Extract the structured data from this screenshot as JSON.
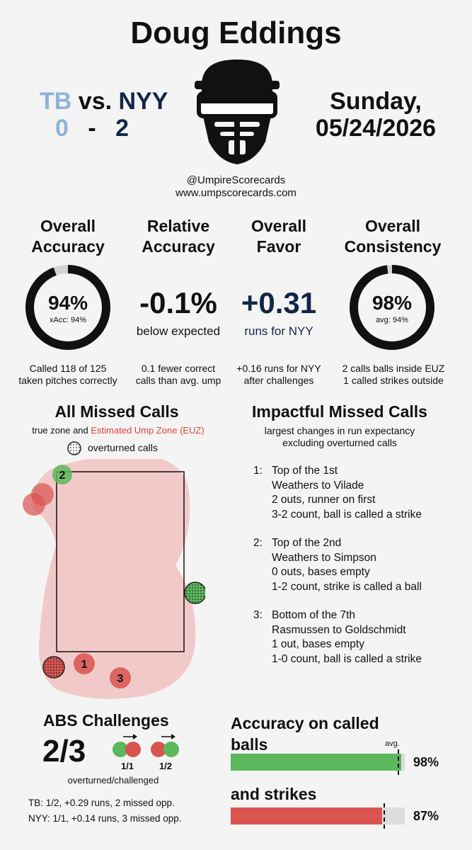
{
  "header": {
    "umpire_name": "Doug Eddings",
    "away_team": "TB",
    "home_team": "NYY",
    "vs_label": "vs.",
    "away_score": "0",
    "score_sep": "-",
    "home_score": "2",
    "day": "Sunday,",
    "date": "05/24/2026",
    "handle": "@UmpireScorecards",
    "website": "www.umpscorecards.com",
    "logo_icon": "umpire-mask-icon"
  },
  "metrics": {
    "overall_accuracy": {
      "title_line1": "Overall",
      "title_line2": "Accuracy",
      "value": "94%",
      "sub": "xAcc: 94%",
      "fraction": 0.944,
      "desc_line1": "Called 118 of 125",
      "desc_line2": "taken pitches correctly"
    },
    "relative_accuracy": {
      "title_line1": "Relative",
      "title_line2": "Accuracy",
      "value": "-0.1%",
      "sub": "below expected",
      "desc_line1": "0.1 fewer correct",
      "desc_line2": "calls than avg. ump"
    },
    "overall_favor": {
      "title_line1": "Overall",
      "title_line2": "Favor",
      "value": "+0.31",
      "sub": "runs for NYY",
      "desc_line1": "+0.16 runs for NYY",
      "desc_line2": "after challenges"
    },
    "overall_consistency": {
      "title_line1": "Overall",
      "title_line2": "Consistency",
      "value": "98%",
      "sub": "avg: 94%",
      "fraction": 0.98,
      "desc_line1": "2 calls balls inside EUZ",
      "desc_line2": "1 called strikes outside"
    }
  },
  "missed_calls": {
    "title": "All Missed Calls",
    "subtitle_prefix": "true zone and ",
    "subtitle_highlight": "Estimated Ump Zone (EUZ)",
    "legend_label": "overturned calls",
    "labels": [
      "1",
      "2",
      "3"
    ]
  },
  "impactful": {
    "title": "Impactful Missed Calls",
    "subtitle_line1": "largest changes in run expectancy",
    "subtitle_line2": "excluding overturned calls",
    "items": [
      {
        "num": "1:",
        "inning": "Top of the 1st",
        "matchup": "Weathers to Vilade",
        "situation": "2 outs, runner on first",
        "result": "3-2 count, ball is called a strike"
      },
      {
        "num": "2:",
        "inning": "Top of the 2nd",
        "matchup": "Weathers to Simpson",
        "situation": "0 outs, bases empty",
        "result": "1-2 count, strike is called a ball"
      },
      {
        "num": "3:",
        "inning": "Bottom of the 7th",
        "matchup": "Rasmussen to Goldschmidt",
        "situation": "1 out, bases empty",
        "result": "1-0 count, ball is called a strike"
      }
    ]
  },
  "abs": {
    "title": "ABS Challenges",
    "value": "2/3",
    "caption": "overturned/challenged",
    "team1_label": "1/1",
    "team2_label": "1/2",
    "tb_line": "TB: 1/2, +0.29 runs, 2 missed opp.",
    "nyy_line": "NYY: 1/1, +0.14 runs, 3 missed opp."
  },
  "called_accuracy": {
    "title_line1": "Accuracy on called",
    "title_line2": "balls",
    "avg_label": "avg.",
    "balls_value": "98%",
    "balls_fraction": 0.98,
    "balls_avg_fraction": 0.96,
    "strikes_title": "and strikes",
    "strikes_value": "87%",
    "strikes_fraction": 0.87,
    "strikes_avg_fraction": 0.88
  },
  "colors": {
    "tb": "#8db3dc",
    "nyy": "#132647",
    "ball_green": "#5cb85c",
    "strike_red": "#d9534f",
    "euz_pink": "#f2c9c9",
    "euz_text": "#e0413d"
  }
}
